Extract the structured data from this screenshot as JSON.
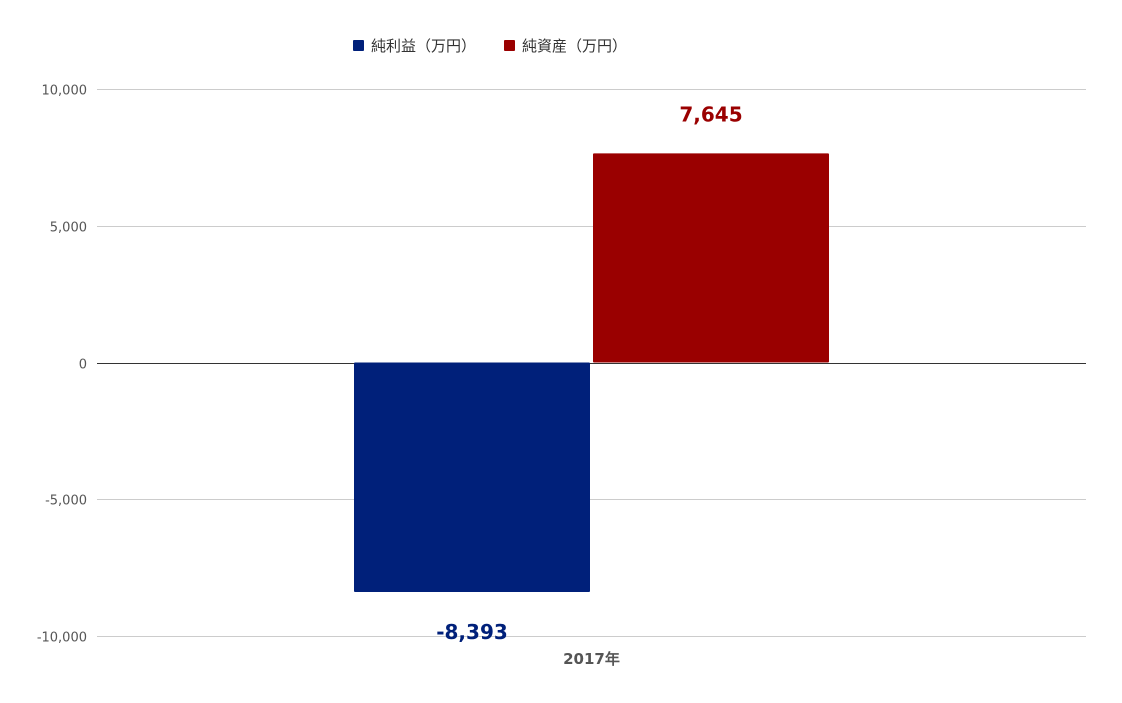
{
  "chart_data": {
    "type": "bar",
    "categories": [
      "2017年"
    ],
    "series": [
      {
        "name": "純利益（万円）",
        "values": [
          -8393
        ],
        "labels": [
          "-8,393"
        ],
        "color": "#00207a"
      },
      {
        "name": "純資産（万円）",
        "values": [
          7645
        ],
        "labels": [
          "7,645"
        ],
        "color": "#9a0000"
      }
    ],
    "ylim": [
      -10000,
      10000
    ],
    "yticks": [
      10000,
      5000,
      0,
      -5000,
      -10000
    ],
    "ytick_labels": [
      "10,000",
      "5,000",
      "0",
      "-5,000",
      "-10,000"
    ],
    "grid": true,
    "legend_position": "top"
  }
}
